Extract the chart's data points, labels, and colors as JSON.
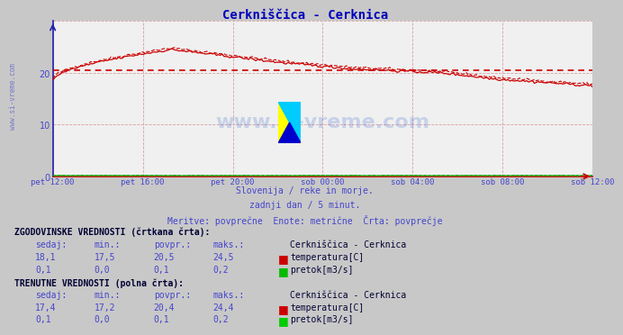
{
  "title": "Cerkniščica - Cerknica",
  "bg_color": "#c8c8c8",
  "plot_bg_color": "#f0f0f0",
  "grid_color": "#d8a0a0",
  "xlabel_color": "#4444cc",
  "ylabel_color": "#4444cc",
  "title_color": "#0000bb",
  "xlabels": [
    "pet 12:00",
    "pet 16:00",
    "pet 20:00",
    "sob 00:00",
    "sob 04:00",
    "sob 08:00",
    "sob 12:00"
  ],
  "ylim": [
    0,
    30
  ],
  "yticks": [
    0,
    10,
    20
  ],
  "subtitle1": "Slovenija / reke in morje.",
  "subtitle2": "zadnji dan / 5 minut.",
  "subtitle3": "Meritve: povprečne  Enote: metrične  Črta: povprečje",
  "hist_label": "ZGODOVINSKE VREDNOSTI (črtkana črta):",
  "curr_label": "TRENUTNE VREDNOSTI (polna črta):",
  "col_headers": [
    "sedaj:",
    "min.:",
    "povpr.:",
    "maks.:"
  ],
  "station_name": "Cerkniščica - Cerknica",
  "hist_temp": [
    18.1,
    17.5,
    20.5,
    24.5
  ],
  "hist_flow": [
    0.1,
    0.0,
    0.1,
    0.2
  ],
  "curr_temp": [
    17.4,
    17.2,
    20.4,
    24.4
  ],
  "curr_flow": [
    0.1,
    0.0,
    0.1,
    0.2
  ],
  "temp_color": "#cc0000",
  "flow_color": "#00aa00",
  "avg_line_value": 20.5,
  "watermark": "www.si-vreme.com",
  "n_points": 288
}
